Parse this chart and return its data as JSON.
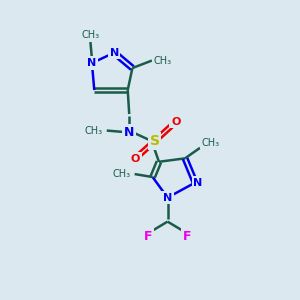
{
  "background_color": "#dce8f0",
  "bond_color": "#1a5c4a",
  "n_color": "#0000ee",
  "s_color": "#bbbb00",
  "o_color": "#ee0000",
  "f_color": "#ee00ee",
  "figsize": [
    3.0,
    3.0
  ],
  "dpi": 100,
  "xlim": [
    0,
    10
  ],
  "ylim": [
    0,
    10
  ]
}
